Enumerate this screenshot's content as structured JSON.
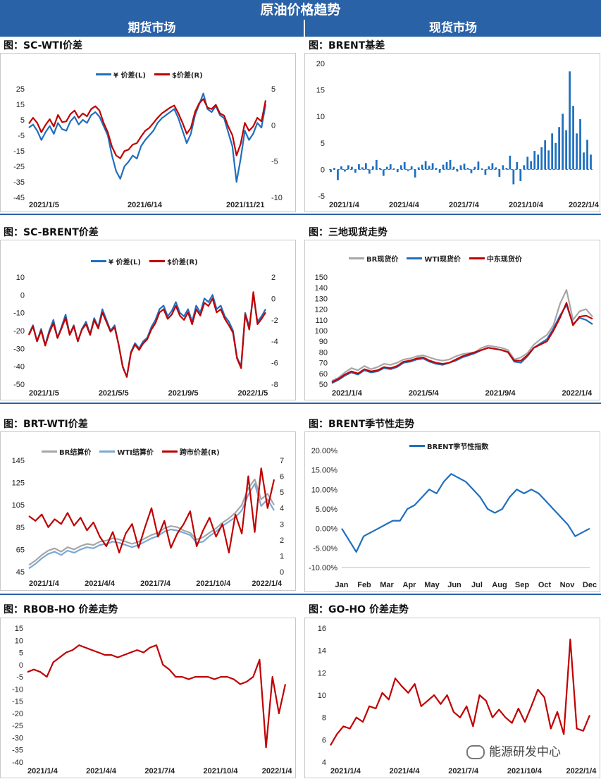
{
  "header": {
    "title": "原油价格趋势",
    "left": "期货市场",
    "right": "现货市场"
  },
  "colors": {
    "blue": "#1f6fbf",
    "red": "#c00000",
    "gray": "#a6a6a6",
    "lightblue": "#7aa9d6",
    "header": "#2a62a8"
  },
  "watermark": "能源研发中心",
  "charts": [
    {
      "id": "c1",
      "title": "图：SC-WTI价差",
      "type": "line",
      "legend": [
        {
          "label": "¥ 价差(L)",
          "color": "#1f6fbf"
        },
        {
          "label": "$价差(R)",
          "color": "#c00000"
        }
      ],
      "yleft": {
        "ticks": [
          "25",
          "15",
          "5",
          "-5",
          "-15",
          "-25",
          "-35",
          "-45"
        ],
        "min": -45,
        "max": 25
      },
      "yright": {
        "ticks": [
          "5",
          "0",
          "-5",
          "-10"
        ],
        "min": -10,
        "max": 5
      },
      "xticks": [
        "2021/1/5",
        "2021/6/14",
        "2021/11/21"
      ],
      "series": [
        {
          "name": "¥ 价差(L)",
          "axis": "left",
          "color": "#1f6fbf",
          "values": [
            0,
            2,
            -2,
            -8,
            -3,
            1,
            -4,
            3,
            -1,
            -2,
            4,
            7,
            2,
            5,
            3,
            8,
            10,
            7,
            1,
            -5,
            -18,
            -28,
            -33,
            -25,
            -22,
            -18,
            -20,
            -12,
            -8,
            -5,
            -2,
            3,
            6,
            8,
            10,
            12,
            6,
            -2,
            -10,
            -4,
            8,
            15,
            22,
            12,
            10,
            14,
            8,
            6,
            -3,
            -12,
            -35,
            -20,
            -2,
            -8,
            -4,
            3,
            0,
            15
          ]
        },
        {
          "name": "$价差(R)",
          "axis": "right",
          "color": "#c00000",
          "values": [
            0.2,
            1,
            0.3,
            -1,
            0,
            0.8,
            -0.2,
            1.4,
            0.4,
            0.5,
            1.5,
            2,
            1,
            1.6,
            1.2,
            2.2,
            2.6,
            2,
            0.3,
            -1,
            -3,
            -4.2,
            -4.6,
            -3.6,
            -3.4,
            -2.7,
            -2.5,
            -1.6,
            -0.8,
            -0.4,
            0.3,
            1,
            1.6,
            2,
            2.4,
            2.7,
            1.6,
            0.3,
            -1.2,
            -0.4,
            1.8,
            3,
            3.6,
            2.4,
            2.2,
            2.8,
            1.6,
            1.3,
            -0.2,
            -1.4,
            -4.2,
            -2.6,
            0.3,
            -0.8,
            -0.2,
            1,
            0.5,
            3.4
          ]
        }
      ]
    },
    {
      "id": "c2",
      "title": "图：BRENT基差",
      "type": "bar",
      "yleft": {
        "ticks": [
          "20",
          "15",
          "10",
          "5",
          "0",
          "-5"
        ],
        "min": -5,
        "max": 20
      },
      "xticks": [
        "2021/1/4",
        "2021/4/4",
        "2021/7/4",
        "2021/10/4",
        "2022/1/4"
      ],
      "series": [
        {
          "name": "",
          "color": "#1f6fbf",
          "values": [
            -0.5,
            0.3,
            -2,
            0.6,
            -0.4,
            0.8,
            0.5,
            -0.6,
            1,
            0.4,
            1.2,
            -0.8,
            0.6,
            1.8,
            0.3,
            -1.2,
            0.5,
            1,
            0.2,
            -0.5,
            0.8,
            1.4,
            -0.3,
            0.6,
            -1.5,
            0.4,
            0.9,
            1.6,
            0.7,
            1.2,
            0.3,
            -0.6,
            0.9,
            1.4,
            1.8,
            0.5,
            -0.4,
            0.8,
            1.1,
            0.3,
            -0.7,
            0.5,
            1.5,
            0.2,
            -1,
            0.6,
            1.2,
            0.4,
            -1.4,
            0.8,
            0.3,
            2.6,
            -2.8,
            1.4,
            -2.2,
            0.8,
            2.4,
            1.6,
            3.5,
            2.8,
            4.2,
            5.5,
            3.6,
            6.8,
            5,
            8,
            10.5,
            7.4,
            18.5,
            12,
            6.8,
            9.5,
            3.2,
            5.6,
            2.8
          ]
        }
      ]
    },
    {
      "id": "c3",
      "title": "图：SC-BRENT价差",
      "type": "line",
      "legend": [
        {
          "label": "¥ 价差(L)",
          "color": "#1f6fbf"
        },
        {
          "label": "$价差(R)",
          "color": "#c00000"
        }
      ],
      "yleft": {
        "ticks": [
          "10",
          "0",
          "-10",
          "-20",
          "-30",
          "-40",
          "-50"
        ],
        "min": -50,
        "max": 10
      },
      "yright": {
        "ticks": [
          "2",
          "0",
          "-2",
          "-4",
          "-6",
          "-8"
        ],
        "min": -8,
        "max": 2
      },
      "xticks": [
        "2021/1/5",
        "2021/5/5",
        "2021/9/5",
        "2022/1/5"
      ],
      "series": [
        {
          "name": "¥ 价差(L)",
          "axis": "left",
          "color": "#1f6fbf",
          "values": [
            -22,
            -17,
            -26,
            -19,
            -28,
            -20,
            -14,
            -24,
            -18,
            -11,
            -22,
            -17,
            -26,
            -19,
            -15,
            -22,
            -13,
            -18,
            -8,
            -14,
            -20,
            -17,
            -28,
            -40,
            -46,
            -32,
            -27,
            -30,
            -26,
            -24,
            -18,
            -14,
            -8,
            -6,
            -12,
            -9,
            -4,
            -10,
            -12,
            -8,
            -15,
            -6,
            -10,
            -2,
            -4,
            0,
            -8,
            -6,
            -12,
            -15,
            -20,
            -35,
            -40,
            -10,
            -18,
            0,
            -15,
            -12,
            -8
          ]
        },
        {
          "name": "$价差(R)",
          "axis": "right",
          "color": "#c00000",
          "values": [
            -3.4,
            -2.6,
            -4,
            -3,
            -4.4,
            -3.2,
            -2.3,
            -3.7,
            -2.8,
            -1.8,
            -3.4,
            -2.6,
            -4,
            -2.9,
            -2.4,
            -3.4,
            -2,
            -2.8,
            -1.3,
            -2.2,
            -3.1,
            -2.7,
            -4.3,
            -6.4,
            -7.3,
            -5.1,
            -4.3,
            -4.8,
            -4.2,
            -3.8,
            -2.9,
            -2.3,
            -1.3,
            -1,
            -1.9,
            -1.5,
            -0.7,
            -1.6,
            -2,
            -1.3,
            -2.4,
            -1,
            -1.6,
            -0.4,
            -0.7,
            0,
            -1.3,
            -1,
            -1.9,
            -2.5,
            -3.2,
            -5.6,
            -6.5,
            -1.5,
            -2.9,
            0.6,
            -2.4,
            -1.9,
            -1.3
          ]
        }
      ]
    },
    {
      "id": "c4",
      "title": "图：三地现货走势",
      "type": "line",
      "legend": [
        {
          "label": "BR现货价",
          "color": "#a6a6a6"
        },
        {
          "label": "WTI现货价",
          "color": "#1f6fbf"
        },
        {
          "label": "中东现货价",
          "color": "#c00000"
        }
      ],
      "yleft": {
        "ticks": [
          "150",
          "140",
          "130",
          "120",
          "110",
          "100",
          "90",
          "80",
          "70",
          "60",
          "50"
        ],
        "min": 50,
        "max": 150
      },
      "xticks": [
        "2021/1/4",
        "2021/5/4",
        "2021/9/4",
        "2022/1/4"
      ],
      "series": [
        {
          "name": "BR现货价",
          "axis": "left",
          "color": "#a6a6a6",
          "values": [
            53,
            56,
            61,
            65,
            63,
            67,
            64,
            66,
            69,
            68,
            70,
            73,
            74,
            76,
            77,
            75,
            73,
            72,
            73,
            76,
            78,
            79,
            80,
            84,
            86,
            85,
            84,
            82,
            73,
            75,
            79,
            87,
            92,
            96,
            105,
            125,
            138,
            110,
            118,
            120,
            113
          ]
        },
        {
          "name": "WTI现货价",
          "axis": "left",
          "color": "#1f6fbf",
          "values": [
            51,
            54,
            58,
            61,
            59,
            63,
            61,
            62,
            65,
            64,
            66,
            70,
            71,
            73,
            74,
            71,
            69,
            68,
            70,
            72,
            75,
            77,
            79,
            82,
            84,
            83,
            82,
            80,
            71,
            70,
            76,
            84,
            88,
            92,
            102,
            114,
            124,
            106,
            112,
            110,
            106
          ]
        },
        {
          "name": "中东现货价",
          "axis": "left",
          "color": "#c00000",
          "values": [
            52,
            55,
            59,
            62,
            60,
            64,
            62,
            63,
            66,
            65,
            67,
            71,
            72,
            74,
            75,
            72,
            70,
            69,
            70,
            73,
            76,
            78,
            80,
            82,
            84,
            83,
            82,
            80,
            72,
            72,
            77,
            84,
            87,
            90,
            100,
            112,
            126,
            105,
            113,
            114,
            111
          ]
        }
      ]
    },
    {
      "id": "c5",
      "title": "图：BRT-WTI价差",
      "type": "line",
      "legend": [
        {
          "label": "BR结算价",
          "color": "#a6a6a6"
        },
        {
          "label": "WTI结算价",
          "color": "#7aa9d6"
        },
        {
          "label": "跨市价差(R)",
          "color": "#c00000"
        }
      ],
      "yleft": {
        "ticks": [
          "145",
          "125",
          "105",
          "85",
          "65",
          "45"
        ],
        "min": 45,
        "max": 145
      },
      "yright": {
        "ticks": [
          "7",
          "6",
          "5",
          "4",
          "3",
          "2",
          "1",
          "0"
        ],
        "min": 0,
        "max": 7
      },
      "xticks": [
        "2021/1/4",
        "2021/4/4",
        "2021/7/4",
        "2021/10/4",
        "2022/1/4"
      ],
      "series": [
        {
          "name": "BR结算价",
          "axis": "left",
          "color": "#a6a6a6",
          "values": [
            51,
            55,
            60,
            64,
            66,
            63,
            67,
            65,
            68,
            70,
            69,
            72,
            73,
            75,
            74,
            72,
            70,
            72,
            75,
            78,
            80,
            84,
            86,
            85,
            82,
            80,
            74,
            76,
            80,
            84,
            89,
            93,
            98,
            105,
            120,
            128,
            110,
            115,
            105
          ]
        },
        {
          "name": "WTI结算价",
          "axis": "left",
          "color": "#7aa9d6",
          "values": [
            48,
            52,
            57,
            61,
            63,
            60,
            64,
            62,
            65,
            67,
            66,
            69,
            70,
            72,
            71,
            69,
            67,
            69,
            72,
            75,
            77,
            81,
            83,
            82,
            80,
            78,
            71,
            72,
            77,
            81,
            86,
            90,
            94,
            100,
            114,
            124,
            104,
            110,
            100
          ]
        },
        {
          "name": "跨市价差(R)",
          "axis": "right",
          "color": "#c00000",
          "values": [
            3.5,
            3.2,
            3.6,
            2.8,
            3.3,
            3,
            3.7,
            2.9,
            3.4,
            2.6,
            3.1,
            2.2,
            1.6,
            2.5,
            1.2,
            2.4,
            3,
            1.5,
            2.8,
            4,
            2.2,
            3.2,
            1.5,
            2.4,
            3,
            3.8,
            1.6,
            2.6,
            3.4,
            2.2,
            3,
            1.2,
            3.6,
            2.4,
            6,
            2.5,
            6.5,
            4,
            5.8
          ]
        }
      ]
    },
    {
      "id": "c6",
      "title": "图：BRENT季节性走势",
      "type": "line",
      "legend": [
        {
          "label": "BRENT季节性指数",
          "color": "#1f6fbf"
        }
      ],
      "yleft": {
        "ticks": [
          "20.00%",
          "15.00%",
          "10.00%",
          "5.00%",
          "0.00%",
          "-5.00%",
          "-10.00%"
        ],
        "min": -10,
        "max": 20
      },
      "xticks": [
        "Jan",
        "Feb",
        "Mar",
        "Apr",
        "May",
        "Jun",
        "Jul",
        "Aug",
        "Sep",
        "Oct",
        "Nov",
        "Dec"
      ],
      "series": [
        {
          "name": "BRENT季节性指数",
          "axis": "left",
          "color": "#1f6fbf",
          "values": [
            0,
            -3,
            -6,
            -2,
            -1,
            0,
            1,
            2,
            2,
            5,
            6,
            8,
            10,
            9,
            12,
            14,
            13,
            12,
            10,
            8,
            5,
            4,
            5,
            8,
            10,
            9,
            10,
            9,
            7,
            5,
            3,
            1,
            -2,
            -1,
            0
          ]
        }
      ]
    },
    {
      "id": "c7",
      "title": "图：RBOB-HO 价差走势",
      "type": "line",
      "yleft": {
        "ticks": [
          "15",
          "10",
          "5",
          "0",
          "-5",
          "-10",
          "-15",
          "-20",
          "-25",
          "-30",
          "-35",
          "-40"
        ],
        "min": -40,
        "max": 15
      },
      "xticks": [
        "2021/1/4",
        "2021/4/4",
        "2021/7/4",
        "2021/10/4",
        "2022/1/4"
      ],
      "series": [
        {
          "name": "",
          "axis": "left",
          "color": "#c00000",
          "values": [
            -3,
            -2,
            -3,
            -5,
            1,
            3,
            5,
            6,
            8,
            7,
            6,
            5,
            4,
            4,
            3,
            4,
            5,
            6,
            5,
            7,
            8,
            0,
            -2,
            -5,
            -5,
            -6,
            -5,
            -5,
            -5,
            -6,
            -5,
            -5,
            -6,
            -8,
            -7,
            -5,
            2,
            -34,
            -5,
            -20,
            -8
          ]
        }
      ]
    },
    {
      "id": "c8",
      "title": "图：GO-HO 价差走势",
      "type": "line",
      "yleft": {
        "ticks": [
          "16",
          "14",
          "12",
          "10",
          "8",
          "6",
          "4"
        ],
        "min": 4,
        "max": 16
      },
      "xticks": [
        "2021/1/4",
        "2021/4/4",
        "2021/7/4",
        "2021/10/4",
        "2022/1/4"
      ],
      "series": [
        {
          "name": "",
          "axis": "left",
          "color": "#c00000",
          "values": [
            5.5,
            6.5,
            7.2,
            7,
            8,
            7.6,
            9,
            8.8,
            10.2,
            9.6,
            11.5,
            10.8,
            10.2,
            11,
            9,
            9.5,
            10,
            9.2,
            10,
            8.5,
            8,
            9,
            7.2,
            10,
            9.5,
            8,
            8.7,
            8,
            7.5,
            8.8,
            7.6,
            9,
            10.5,
            9.8,
            7,
            8.5,
            6.5,
            15,
            7,
            6.8,
            8.2
          ]
        }
      ]
    }
  ]
}
